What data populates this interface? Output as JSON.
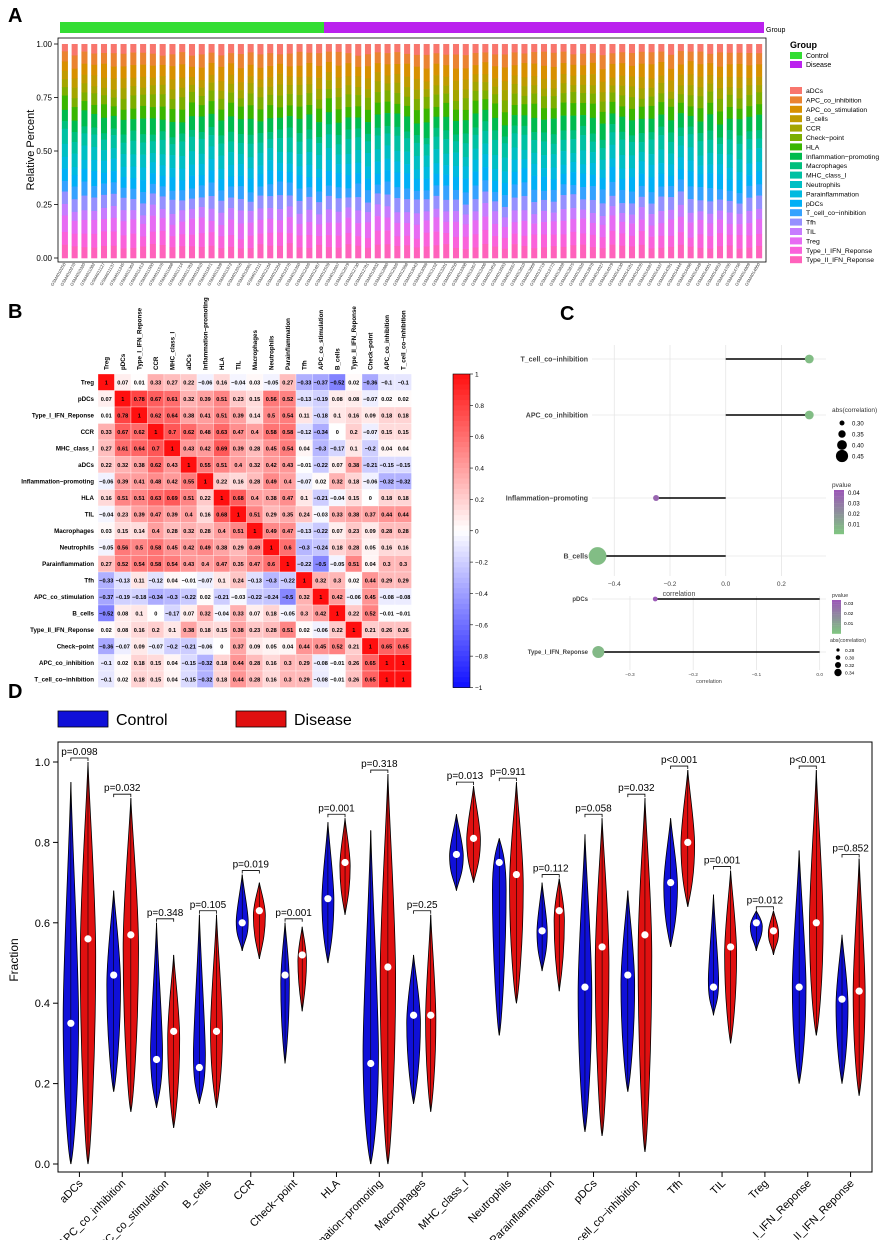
{
  "panel_labels": [
    "A",
    "B",
    "C",
    "D"
  ],
  "colors": {
    "control": "#1010d8",
    "disease": "#e01010",
    "group_control": "#33dd33",
    "group_disease": "#bb22ee",
    "low_p": "#7fc97f",
    "high_p": "#9b59b6"
  },
  "chart_data": [
    {
      "panel": "A",
      "type": "bar",
      "stacked": true,
      "ylabel": "Relative Percent",
      "yticks": [
        "0.00",
        "0.25",
        "0.50",
        "0.75",
        "1.00"
      ],
      "group_bar_label": "Group",
      "group_legend_title": "Group",
      "groups": [
        "Control",
        "Disease"
      ],
      "n_control": 27,
      "legend_title": "",
      "cell_types": [
        "aDCs",
        "APC_co_inhibition",
        "APC_co_stimulation",
        "B_cells",
        "CCR",
        "Check−point",
        "HLA",
        "Inflammation−promoting",
        "Macrophages",
        "MHC_class_I",
        "Neutrophils",
        "Parainflammation",
        "pDCs",
        "T_cell_co−inhibition",
        "Tfh",
        "TIL",
        "Treg",
        "Type_I_IFN_Reponse",
        "Type_II_IFN_Reponse"
      ],
      "palette": [
        "#f8766d",
        "#ea8331",
        "#d89000",
        "#c09b00",
        "#a3a500",
        "#7cae00",
        "#39b600",
        "#00bb4e",
        "#00bf7d",
        "#00c1a3",
        "#00bfc4",
        "#00bae0",
        "#00b0f6",
        "#35a2ff",
        "#9590ff",
        "#c77cff",
        "#e76bf3",
        "#fa62db",
        "#ff62bc"
      ],
      "base_fractions": [
        0.042,
        0.052,
        0.052,
        0.042,
        0.04,
        0.046,
        0.052,
        0.06,
        0.036,
        0.056,
        0.052,
        0.046,
        0.055,
        0.052,
        0.055,
        0.048,
        0.06,
        0.052,
        0.052
      ],
      "samples": [
        "GSM4010250",
        "GSM4010270",
        "GSM4010320",
        "GSM4011082",
        "GSM4011127",
        "GSM4011137",
        "GSM4011245",
        "GSM4011363",
        "GSM4011413",
        "GSM4011500",
        "GSM4011576",
        "GSM4011668",
        "GSM4011714",
        "GSM4011783",
        "GSM4011810",
        "GSM4011871",
        "GSM4011939",
        "GSM4011972",
        "GSM4012016",
        "GSM4012061",
        "GSM4012111",
        "GSM4012164",
        "GSM4012264",
        "GSM4012276",
        "GSM4012350",
        "GSM4012426",
        "GSM4012487",
        "GSM4012539",
        "GSM4012607",
        "GSM4012679",
        "GSM4012730",
        "GSM4012781",
        "GSM4012832",
        "GSM4012880",
        "GSM4012926",
        "GSM4012998",
        "GSM4013043",
        "GSM4013099",
        "GSM4013152",
        "GSM4013201",
        "GSM4013250",
        "GSM4013308",
        "GSM4013357",
        "GSM4013406",
        "GSM4013452",
        "GSM4013503",
        "GSM4013557",
        "GSM4013610",
        "GSM4013669",
        "GSM4013719",
        "GSM4013773",
        "GSM4013828",
        "GSM4013875",
        "GSM4013926",
        "GSM4013978",
        "GSM4014027",
        "GSM4014079",
        "GSM4014130",
        "GSM4014181",
        "GSM4014235",
        "GSM4014287",
        "GSM4014337",
        "GSM4014391",
        "GSM4014444",
        "GSM4014496",
        "GSM4014549",
        "GSM4014601",
        "GSM4014653",
        "GSM4014705",
        "GSM4014756",
        "GSM4014809",
        "GSM4014860"
      ]
    },
    {
      "panel": "B",
      "type": "heatmap",
      "labels": [
        "Treg",
        "pDCs",
        "Type_I_IFN_Reponse",
        "CCR",
        "MHC_class_I",
        "aDCs",
        "Inflammation−promoting",
        "HLA",
        "TIL",
        "Macrophages",
        "Neutrophils",
        "Parainflammation",
        "Tfh",
        "APC_co_stimulation",
        "B_cells",
        "Type_II_IFN_Reponse",
        "Check−point",
        "APC_co_inhibition",
        "T_cell_co−inhibition"
      ],
      "colorbar_ticks": [
        "1",
        "0.8",
        "0.6",
        "0.4",
        "0.2",
        "0",
        "−0.2",
        "−0.4",
        "−0.6",
        "−0.8",
        "−1"
      ],
      "matrix": [
        [
          1,
          0.07,
          0.01,
          0.33,
          0.27,
          0.22,
          -0.06,
          0.16,
          -0.04,
          0.03,
          -0.05,
          0.27,
          -0.33,
          -0.37,
          -0.52,
          0.02,
          -0.36,
          -0.1,
          -0.1
        ],
        [
          0.07,
          1,
          0.78,
          0.67,
          0.61,
          0.32,
          0.39,
          0.51,
          0.23,
          0.15,
          0.56,
          0.52,
          -0.13,
          -0.19,
          0.08,
          0.08,
          -0.07,
          0.02,
          0.02
        ],
        [
          0.01,
          0.78,
          1,
          0.62,
          0.64,
          0.38,
          0.41,
          0.51,
          0.39,
          0.14,
          0.5,
          0.54,
          0.11,
          -0.18,
          0.1,
          0.16,
          0.09,
          0.18,
          0.18
        ],
        [
          0.33,
          0.67,
          0.62,
          1,
          0.7,
          0.62,
          0.48,
          0.63,
          0.47,
          0.4,
          0.58,
          0.58,
          -0.12,
          -0.34,
          0,
          0.2,
          -0.07,
          0.15,
          0.15
        ],
        [
          0.27,
          0.61,
          0.64,
          0.7,
          1,
          0.43,
          0.42,
          0.69,
          0.39,
          0.28,
          0.45,
          0.54,
          0.04,
          -0.3,
          -0.17,
          0.1,
          -0.2,
          0.04,
          0.04
        ],
        [
          0.22,
          0.32,
          0.38,
          0.62,
          0.43,
          1,
          0.55,
          0.51,
          0.4,
          0.32,
          0.42,
          0.43,
          -0.01,
          -0.22,
          0.07,
          0.38,
          -0.21,
          -0.15,
          -0.15
        ],
        [
          -0.06,
          0.39,
          0.41,
          0.48,
          0.42,
          0.55,
          1,
          0.22,
          0.16,
          0.28,
          0.49,
          0.4,
          -0.07,
          0.02,
          0.32,
          0.18,
          -0.06,
          -0.32,
          -0.32
        ],
        [
          0.16,
          0.51,
          0.51,
          0.63,
          0.69,
          0.51,
          0.22,
          1,
          0.68,
          0.4,
          0.38,
          0.47,
          0.1,
          -0.21,
          -0.04,
          0.15,
          0,
          0.18,
          0.18
        ],
        [
          -0.04,
          0.23,
          0.39,
          0.47,
          0.39,
          0.4,
          0.16,
          0.68,
          1,
          0.51,
          0.29,
          0.35,
          0.24,
          -0.03,
          0.33,
          0.38,
          0.37,
          0.44,
          0.44
        ],
        [
          0.03,
          0.15,
          0.14,
          0.4,
          0.28,
          0.32,
          0.28,
          0.4,
          0.51,
          1,
          0.49,
          0.47,
          -0.13,
          -0.22,
          0.07,
          0.23,
          0.09,
          0.28,
          0.28
        ],
        [
          -0.05,
          0.56,
          0.5,
          0.58,
          0.45,
          0.42,
          0.49,
          0.38,
          0.29,
          0.49,
          1,
          0.6,
          -0.3,
          -0.24,
          0.18,
          0.28,
          0.05,
          0.16,
          0.16
        ],
        [
          0.27,
          0.52,
          0.54,
          0.58,
          0.54,
          0.43,
          0.4,
          0.47,
          0.35,
          0.47,
          0.6,
          1,
          -0.22,
          -0.5,
          -0.05,
          0.51,
          0.04,
          0.3,
          0.3
        ],
        [
          -0.33,
          -0.13,
          0.11,
          -0.12,
          0.04,
          -0.01,
          -0.07,
          0.1,
          0.24,
          -0.13,
          -0.3,
          -0.22,
          1,
          0.32,
          0.3,
          0.02,
          0.44,
          0.29,
          0.29
        ],
        [
          -0.37,
          -0.19,
          -0.18,
          -0.34,
          -0.3,
          -0.22,
          0.02,
          -0.21,
          -0.03,
          -0.22,
          -0.24,
          -0.5,
          0.32,
          1,
          0.42,
          -0.06,
          0.45,
          -0.08,
          -0.08
        ],
        [
          -0.52,
          0.08,
          0.1,
          0,
          -0.17,
          0.07,
          0.32,
          -0.04,
          0.33,
          0.07,
          0.18,
          -0.05,
          0.3,
          0.42,
          1,
          0.22,
          0.52,
          -0.01,
          -0.01
        ],
        [
          0.02,
          0.08,
          0.16,
          0.2,
          0.1,
          0.38,
          0.18,
          0.15,
          0.38,
          0.23,
          0.28,
          0.51,
          0.02,
          -0.06,
          0.22,
          1,
          0.21,
          0.26,
          0.26
        ],
        [
          -0.36,
          -0.07,
          0.09,
          -0.07,
          -0.2,
          -0.21,
          -0.06,
          0,
          0.37,
          0.09,
          0.05,
          0.04,
          0.44,
          0.45,
          0.52,
          0.21,
          1,
          0.65,
          0.65
        ],
        [
          -0.1,
          0.02,
          0.18,
          0.15,
          0.04,
          -0.15,
          -0.32,
          0.18,
          0.44,
          0.28,
          0.16,
          0.3,
          0.29,
          -0.08,
          -0.01,
          0.26,
          0.65,
          1,
          1
        ],
        [
          -0.1,
          0.02,
          0.18,
          0.15,
          0.04,
          -0.15,
          -0.32,
          0.18,
          0.44,
          0.28,
          0.16,
          0.3,
          0.29,
          -0.08,
          -0.01,
          0.26,
          0.65,
          1,
          1
        ]
      ]
    },
    {
      "panel": "C1",
      "type": "scatter",
      "style": "lollipop",
      "xlabel": "correlation",
      "xlim": [
        -0.48,
        0.36
      ],
      "xticks": [
        "−0.4",
        "−0.2",
        "0.0",
        "0.2"
      ],
      "xtick_values": [
        -0.4,
        -0.2,
        0,
        0.2
      ],
      "items": [
        {
          "label": "T_cell_co−inhibition",
          "r": 0.3,
          "p": 0.005
        },
        {
          "label": "APC_co_inhibition",
          "r": 0.3,
          "p": 0.005
        },
        {
          "label": "Inflammation−promoting",
          "r": -0.25,
          "p": 0.04
        },
        {
          "label": "B_cells",
          "r": -0.46,
          "p": 0.005
        }
      ],
      "size_legend_title": "abs(correlation)",
      "size_legend": [
        "0.30",
        "0.35",
        "0.40",
        "0.45"
      ],
      "color_legend_title": "pvalue",
      "color_legend": [
        "0.04",
        "0.03",
        "0.02",
        "0.01"
      ]
    },
    {
      "panel": "C2",
      "type": "scatter",
      "style": "lollipop",
      "xlabel": "correlation",
      "xlim": [
        -0.36,
        0.01
      ],
      "xticks": [
        "−0.3",
        "−0.2",
        "−0.1",
        "0.0"
      ],
      "xtick_values": [
        -0.3,
        -0.2,
        -0.1,
        0
      ],
      "items": [
        {
          "label": "pDCs",
          "r": -0.26,
          "p": 0.035
        },
        {
          "label": "Type_I_IFN_Reponse",
          "r": -0.35,
          "p": 0.005
        }
      ],
      "color_legend_title": "pvalue",
      "color_legend": [
        "0.03",
        "0.02",
        "0.01"
      ],
      "size_legend_title": "abs(correlation)",
      "size_legend": [
        "0.28",
        "0.30",
        "0.32",
        "0.34"
      ]
    },
    {
      "panel": "D",
      "type": "violin",
      "ylabel": "Fraction",
      "ylim": [
        0,
        1
      ],
      "yticks": [
        "0.0",
        "0.2",
        "0.4",
        "0.6",
        "0.8",
        "1.0"
      ],
      "legend": [
        "Control",
        "Disease"
      ],
      "categories": [
        "aDCs",
        "APC_co_inhibition",
        "APC_co_stimulation",
        "B_cells",
        "CCR",
        "Check−point",
        "HLA",
        "Inflammation−promoting",
        "Macrophages",
        "MHC_class_I",
        "Neutrophils",
        "Parainflammation",
        "pDCs",
        "T_cell_co−inhibition",
        "Tfh",
        "TIL",
        "Treg",
        "Type_I_IFN_Reponse",
        "Type_II_IFN_Reponse"
      ],
      "pvalues": [
        "p=0.098",
        "p=0.032",
        "p=0.348",
        "p=0.105",
        "p=0.019",
        "p=0.001",
        "p=0.001",
        "p=0.318",
        "p=0.25",
        "p=0.013",
        "p=0.911",
        "p=0.112",
        "p=0.058",
        "p=0.032",
        "p<0.001",
        "p=0.001",
        "p=0.012",
        "p<0.001",
        "p=0.852"
      ],
      "control": [
        {
          "min": 0,
          "max": 0.95,
          "median": 0.35,
          "w": 0.9
        },
        {
          "min": 0.18,
          "max": 0.68,
          "median": 0.47,
          "w": 0.8
        },
        {
          "min": 0.14,
          "max": 0.6,
          "median": 0.26,
          "w": 0.7
        },
        {
          "min": 0.15,
          "max": 0.62,
          "median": 0.24,
          "w": 0.7
        },
        {
          "min": 0.53,
          "max": 0.72,
          "median": 0.6,
          "w": 0.7
        },
        {
          "min": 0.25,
          "max": 0.6,
          "median": 0.47,
          "w": 0.5
        },
        {
          "min": 0.5,
          "max": 0.85,
          "median": 0.66,
          "w": 0.7
        },
        {
          "min": 0,
          "max": 0.83,
          "median": 0.25,
          "w": 0.9
        },
        {
          "min": 0.15,
          "max": 0.52,
          "median": 0.37,
          "w": 0.8
        },
        {
          "min": 0.68,
          "max": 0.87,
          "median": 0.77,
          "w": 0.8
        },
        {
          "min": 0.32,
          "max": 0.81,
          "median": 0.75,
          "w": 0.8
        },
        {
          "min": 0.48,
          "max": 0.7,
          "median": 0.58,
          "w": 0.6
        },
        {
          "min": 0.08,
          "max": 0.82,
          "median": 0.44,
          "w": 0.8
        },
        {
          "min": 0.18,
          "max": 0.68,
          "median": 0.47,
          "w": 0.8
        },
        {
          "min": 0.54,
          "max": 0.86,
          "median": 0.7,
          "w": 0.8
        },
        {
          "min": 0.37,
          "max": 0.67,
          "median": 0.44,
          "w": 0.6
        },
        {
          "min": 0.53,
          "max": 0.63,
          "median": 0.6,
          "w": 0.7
        },
        {
          "min": 0.2,
          "max": 0.78,
          "median": 0.44,
          "w": 0.8
        },
        {
          "min": 0.2,
          "max": 0.57,
          "median": 0.41,
          "w": 0.7
        }
      ],
      "disease": [
        {
          "min": 0,
          "max": 1.0,
          "median": 0.56,
          "w": 0.9
        },
        {
          "min": 0.13,
          "max": 0.91,
          "median": 0.57,
          "w": 0.9
        },
        {
          "min": 0.09,
          "max": 0.52,
          "median": 0.33,
          "w": 0.7
        },
        {
          "min": 0.14,
          "max": 0.62,
          "median": 0.33,
          "w": 0.7
        },
        {
          "min": 0.51,
          "max": 0.7,
          "median": 0.63,
          "w": 0.7
        },
        {
          "min": 0.38,
          "max": 0.59,
          "median": 0.52,
          "w": 0.5
        },
        {
          "min": 0.62,
          "max": 0.86,
          "median": 0.75,
          "w": 0.6
        },
        {
          "min": 0,
          "max": 0.97,
          "median": 0.49,
          "w": 0.9
        },
        {
          "min": 0.13,
          "max": 0.62,
          "median": 0.37,
          "w": 0.6
        },
        {
          "min": 0.7,
          "max": 0.94,
          "median": 0.81,
          "w": 0.8
        },
        {
          "min": 0.4,
          "max": 0.95,
          "median": 0.72,
          "w": 0.8
        },
        {
          "min": 0.43,
          "max": 0.71,
          "median": 0.63,
          "w": 0.6
        },
        {
          "min": 0.07,
          "max": 0.86,
          "median": 0.54,
          "w": 0.8
        },
        {
          "min": 0.03,
          "max": 0.91,
          "median": 0.57,
          "w": 0.8
        },
        {
          "min": 0.64,
          "max": 0.98,
          "median": 0.8,
          "w": 0.8
        },
        {
          "min": 0.3,
          "max": 0.73,
          "median": 0.54,
          "w": 0.7
        },
        {
          "min": 0.52,
          "max": 0.63,
          "median": 0.58,
          "w": 0.6
        },
        {
          "min": 0.32,
          "max": 0.98,
          "median": 0.6,
          "w": 0.8
        },
        {
          "min": 0.17,
          "max": 0.76,
          "median": 0.43,
          "w": 0.7
        }
      ]
    }
  ]
}
